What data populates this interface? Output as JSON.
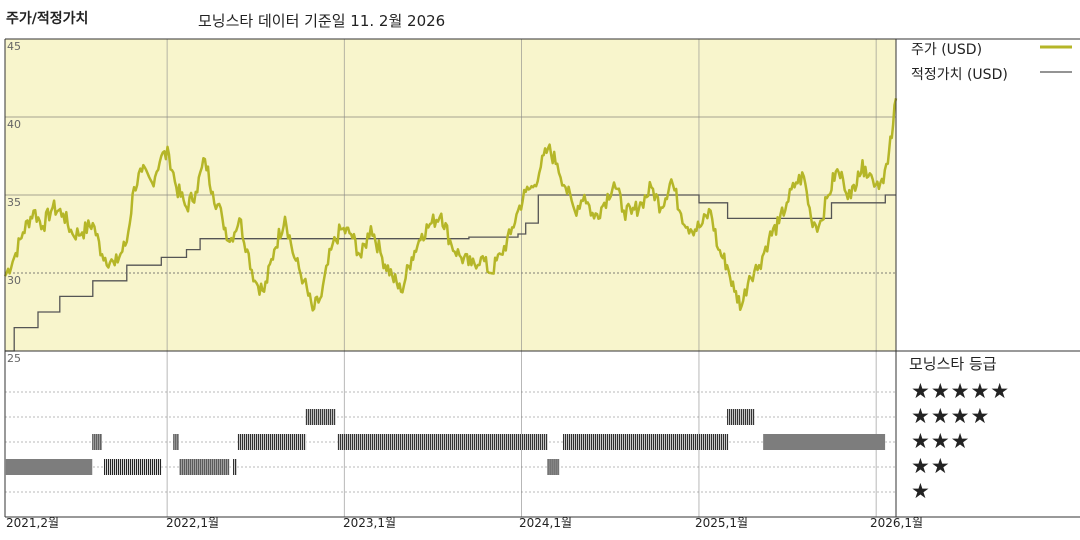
{
  "header": {
    "title": "주가/적정가치",
    "subtitle": "모닝스타 데이터 기준일 11. 2월 2026"
  },
  "legend": {
    "price_label": "주가 (USD)",
    "fair_value_label": "적정가치 (USD)"
  },
  "rating": {
    "title": "모닝스타 등급",
    "levels": [
      "★★★★★",
      "★★★★",
      "★★★",
      "★★",
      "★"
    ]
  },
  "colors": {
    "price": "#b5b628",
    "fair_value": "#555555",
    "plot_bg": "#f8f5cc",
    "rating_bar": "#222222"
  },
  "chart_data": {
    "type": "line",
    "title": "주가/적정가치",
    "ylim": [
      25,
      45
    ],
    "y_ticks": [
      "45",
      "40",
      "35",
      "30",
      "25"
    ],
    "x_range": [
      "2021-02-01",
      "2026-02-11"
    ],
    "x_ticks": [
      "2021,2월",
      "2022,1월",
      "2023,1월",
      "2024,1월",
      "2025,1월",
      "2026,1월"
    ],
    "series": [
      {
        "name": "주가 (USD)",
        "points": [
          [
            "2021-02-01",
            29.8
          ],
          [
            "2021-02-20",
            31.0
          ],
          [
            "2021-03-10",
            32.6
          ],
          [
            "2021-04-01",
            34.0
          ],
          [
            "2021-04-20",
            33.0
          ],
          [
            "2021-05-10",
            34.2
          ],
          [
            "2021-06-01",
            33.8
          ],
          [
            "2021-06-20",
            32.5
          ],
          [
            "2021-07-10",
            32.6
          ],
          [
            "2021-08-01",
            33.2
          ],
          [
            "2021-08-20",
            31.2
          ],
          [
            "2021-09-15",
            30.5
          ],
          [
            "2021-10-10",
            32.0
          ],
          [
            "2021-10-25",
            35.5
          ],
          [
            "2021-11-10",
            36.5
          ],
          [
            "2021-12-01",
            35.8
          ],
          [
            "2021-12-20",
            37.5
          ],
          [
            "2022-01-05",
            37.6
          ],
          [
            "2022-01-20",
            35.5
          ],
          [
            "2022-02-10",
            34.2
          ],
          [
            "2022-03-01",
            35.2
          ],
          [
            "2022-03-20",
            37.3
          ],
          [
            "2022-04-05",
            35.2
          ],
          [
            "2022-04-25",
            33.5
          ],
          [
            "2022-05-10",
            32.0
          ],
          [
            "2022-05-30",
            33.5
          ],
          [
            "2022-06-15",
            31.5
          ],
          [
            "2022-07-01",
            29.5
          ],
          [
            "2022-07-20",
            28.8
          ],
          [
            "2022-08-10",
            31.5
          ],
          [
            "2022-09-01",
            33.6
          ],
          [
            "2022-09-20",
            31.0
          ],
          [
            "2022-10-10",
            29.5
          ],
          [
            "2022-10-28",
            27.6
          ],
          [
            "2022-11-15",
            28.5
          ],
          [
            "2022-12-05",
            31.5
          ],
          [
            "2022-12-25",
            32.8
          ],
          [
            "2023-01-15",
            32.5
          ],
          [
            "2023-02-05",
            31.0
          ],
          [
            "2023-02-25",
            33.0
          ],
          [
            "2023-03-20",
            31.0
          ],
          [
            "2023-04-10",
            29.8
          ],
          [
            "2023-04-28",
            28.8
          ],
          [
            "2023-05-20",
            31.0
          ],
          [
            "2023-06-10",
            32.5
          ],
          [
            "2023-06-30",
            33.2
          ],
          [
            "2023-07-20",
            33.8
          ],
          [
            "2023-08-10",
            31.8
          ],
          [
            "2023-08-30",
            31.0
          ],
          [
            "2023-09-20",
            30.5
          ],
          [
            "2023-10-10",
            31.0
          ],
          [
            "2023-10-30",
            30.0
          ],
          [
            "2023-11-20",
            31.2
          ],
          [
            "2023-12-10",
            32.5
          ],
          [
            "2023-12-25",
            34.0
          ],
          [
            "2024-01-10",
            35.2
          ],
          [
            "2024-01-25",
            35.5
          ],
          [
            "2024-02-10",
            36.8
          ],
          [
            "2024-02-25",
            38.0
          ],
          [
            "2024-03-15",
            37.0
          ],
          [
            "2024-04-01",
            35.5
          ],
          [
            "2024-04-20",
            34.0
          ],
          [
            "2024-05-10",
            35.0
          ],
          [
            "2024-05-30",
            33.5
          ],
          [
            "2024-06-20",
            34.5
          ],
          [
            "2024-07-10",
            35.8
          ],
          [
            "2024-07-30",
            34.0
          ],
          [
            "2024-08-15",
            33.8
          ],
          [
            "2024-09-05",
            34.5
          ],
          [
            "2024-09-25",
            35.5
          ],
          [
            "2024-10-15",
            34.2
          ],
          [
            "2024-11-05",
            36.0
          ],
          [
            "2024-11-25",
            33.8
          ],
          [
            "2024-12-15",
            32.8
          ],
          [
            "2025-01-05",
            33.0
          ],
          [
            "2025-01-25",
            34.0
          ],
          [
            "2025-02-10",
            31.5
          ],
          [
            "2025-02-28",
            30.5
          ],
          [
            "2025-03-15",
            28.8
          ],
          [
            "2025-03-30",
            27.9
          ],
          [
            "2025-04-15",
            29.8
          ],
          [
            "2025-05-05",
            30.5
          ],
          [
            "2025-05-25",
            32.2
          ],
          [
            "2025-06-15",
            33.2
          ],
          [
            "2025-07-01",
            34.5
          ],
          [
            "2025-07-20",
            35.8
          ],
          [
            "2025-08-05",
            36.2
          ],
          [
            "2025-08-20",
            33.5
          ],
          [
            "2025-09-05",
            33.0
          ],
          [
            "2025-09-25",
            35.0
          ],
          [
            "2025-10-10",
            36.5
          ],
          [
            "2025-10-25",
            36.0
          ],
          [
            "2025-11-10",
            34.8
          ],
          [
            "2025-11-25",
            36.5
          ],
          [
            "2025-12-10",
            36.8
          ],
          [
            "2025-12-25",
            36.0
          ],
          [
            "2026-01-10",
            35.8
          ],
          [
            "2026-01-25",
            37.0
          ],
          [
            "2026-02-05",
            39.5
          ],
          [
            "2026-02-11",
            41.2
          ]
        ]
      },
      {
        "name": "적정가치 (USD)",
        "step": true,
        "points": [
          [
            "2021-02-01",
            25.0
          ],
          [
            "2021-02-20",
            26.5
          ],
          [
            "2021-04-10",
            27.5
          ],
          [
            "2021-05-25",
            28.5
          ],
          [
            "2021-08-01",
            29.5
          ],
          [
            "2021-10-10",
            30.5
          ],
          [
            "2021-12-20",
            31.0
          ],
          [
            "2022-02-10",
            31.5
          ],
          [
            "2022-03-10",
            32.2
          ],
          [
            "2023-06-20",
            32.2
          ],
          [
            "2023-09-15",
            32.3
          ],
          [
            "2023-11-01",
            32.3
          ],
          [
            "2023-12-25",
            32.5
          ],
          [
            "2024-01-10",
            33.2
          ],
          [
            "2024-02-05",
            35.0
          ],
          [
            "2024-12-15",
            35.0
          ],
          [
            "2025-01-01",
            34.5
          ],
          [
            "2025-03-01",
            33.5
          ],
          [
            "2025-08-05",
            33.5
          ],
          [
            "2025-10-01",
            34.5
          ],
          [
            "2026-01-20",
            35.0
          ],
          [
            "2026-02-11",
            35.0
          ]
        ]
      }
    ],
    "rating_history": [
      {
        "start": "2021-02-01",
        "end": "2021-08-01",
        "stars": 2
      },
      {
        "start": "2021-08-01",
        "end": "2021-08-20",
        "stars": 3
      },
      {
        "start": "2021-08-25",
        "end": "2021-12-20",
        "stars": 2
      },
      {
        "start": "2022-01-15",
        "end": "2022-01-25",
        "stars": 3
      },
      {
        "start": "2022-01-28",
        "end": "2022-05-10",
        "stars": 2
      },
      {
        "start": "2022-05-18",
        "end": "2022-05-25",
        "stars": 2
      },
      {
        "start": "2022-05-28",
        "end": "2022-10-15",
        "stars": 3
      },
      {
        "start": "2022-10-15",
        "end": "2022-12-15",
        "stars": 4
      },
      {
        "start": "2022-12-20",
        "end": "2024-02-25",
        "stars": 3
      },
      {
        "start": "2024-02-25",
        "end": "2024-03-20",
        "stars": 2
      },
      {
        "start": "2024-03-28",
        "end": "2025-03-01",
        "stars": 3
      },
      {
        "start": "2025-03-01",
        "end": "2025-04-25",
        "stars": 4
      },
      {
        "start": "2025-05-15",
        "end": "2026-01-20",
        "stars": 3
      }
    ]
  }
}
